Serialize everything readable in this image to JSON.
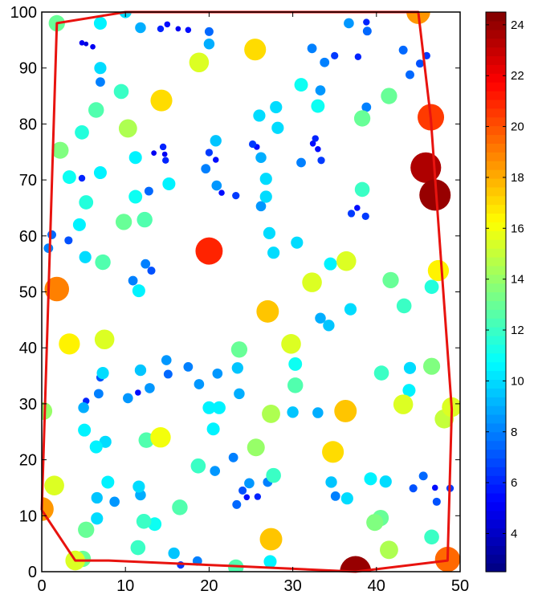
{
  "chart_data": {
    "type": "scatter",
    "title": "",
    "xlabel": "",
    "ylabel": "",
    "xlim": [
      0,
      50
    ],
    "ylim": [
      0,
      100
    ],
    "x_ticks": [
      "0",
      "10",
      "20",
      "30",
      "40",
      "50"
    ],
    "y_ticks": [
      "0",
      "10",
      "20",
      "30",
      "40",
      "50",
      "60",
      "70",
      "80",
      "90",
      "100"
    ],
    "grid": false,
    "colorbar": {
      "min": 2.5,
      "max": 24.5,
      "ticks": [
        "4",
        "6",
        "8",
        "10",
        "12",
        "14",
        "16",
        "18",
        "20",
        "22",
        "24"
      ],
      "colormap": "jet"
    },
    "boundary_color": "#e8130f",
    "boundary": [
      [
        0,
        11
      ],
      [
        1.8,
        98
      ],
      [
        10,
        100
      ],
      [
        45,
        100
      ],
      [
        46.5,
        81
      ],
      [
        49,
        29
      ],
      [
        48.5,
        2
      ],
      [
        37.5,
        0
      ],
      [
        23,
        1
      ],
      [
        8,
        2
      ],
      [
        4,
        2
      ],
      [
        0,
        11
      ]
    ],
    "points": [
      {
        "x": 1.8,
        "y": 98,
        "value": 13
      },
      {
        "x": 7,
        "y": 98,
        "value": 10.5
      },
      {
        "x": 10,
        "y": 100,
        "value": 10
      },
      {
        "x": 45,
        "y": 100,
        "value": 18.5
      },
      {
        "x": 11.8,
        "y": 97.2,
        "value": 9
      },
      {
        "x": 14.2,
        "y": 97,
        "value": 6
      },
      {
        "x": 15,
        "y": 97.8,
        "value": 5.5
      },
      {
        "x": 16.3,
        "y": 97,
        "value": 5
      },
      {
        "x": 17.5,
        "y": 96.8,
        "value": 5.5
      },
      {
        "x": 20,
        "y": 96.5,
        "value": 7.5
      },
      {
        "x": 36.7,
        "y": 98,
        "value": 8.5
      },
      {
        "x": 38.8,
        "y": 98.2,
        "value": 6
      },
      {
        "x": 38.9,
        "y": 96.6,
        "value": 7.5
      },
      {
        "x": 4.8,
        "y": 94.5,
        "value": 5
      },
      {
        "x": 5.3,
        "y": 94.3,
        "value": 4.5
      },
      {
        "x": 6.1,
        "y": 93.8,
        "value": 5
      },
      {
        "x": 20,
        "y": 94.3,
        "value": 9
      },
      {
        "x": 25.5,
        "y": 93.3,
        "value": 17
      },
      {
        "x": 32.3,
        "y": 93.5,
        "value": 8
      },
      {
        "x": 33.8,
        "y": 91,
        "value": 8
      },
      {
        "x": 35,
        "y": 92.2,
        "value": 6.5
      },
      {
        "x": 37.8,
        "y": 92,
        "value": 6
      },
      {
        "x": 46,
        "y": 92.2,
        "value": 6.5
      },
      {
        "x": 43.2,
        "y": 93.2,
        "value": 7.5
      },
      {
        "x": 44,
        "y": 88.8,
        "value": 7.5
      },
      {
        "x": 45.2,
        "y": 90.8,
        "value": 7
      },
      {
        "x": 18.8,
        "y": 91,
        "value": 15.5
      },
      {
        "x": 7,
        "y": 90,
        "value": 10
      },
      {
        "x": 7,
        "y": 87.5,
        "value": 8
      },
      {
        "x": 9.5,
        "y": 85.8,
        "value": 12
      },
      {
        "x": 14.3,
        "y": 84.2,
        "value": 17
      },
      {
        "x": 31,
        "y": 87,
        "value": 11
      },
      {
        "x": 33.3,
        "y": 86,
        "value": 8.5
      },
      {
        "x": 33,
        "y": 83.2,
        "value": 11
      },
      {
        "x": 26,
        "y": 81.5,
        "value": 10
      },
      {
        "x": 28,
        "y": 83,
        "value": 10
      },
      {
        "x": 38.8,
        "y": 83,
        "value": 8
      },
      {
        "x": 41.5,
        "y": 85,
        "value": 13
      },
      {
        "x": 6.5,
        "y": 82.5,
        "value": 12.5
      },
      {
        "x": 4.8,
        "y": 78.5,
        "value": 11.5
      },
      {
        "x": 10.3,
        "y": 79.2,
        "value": 14.5
      },
      {
        "x": 28.2,
        "y": 79.3,
        "value": 10
      },
      {
        "x": 38.3,
        "y": 81,
        "value": 13
      },
      {
        "x": 46.5,
        "y": 81.2,
        "value": 20.5
      },
      {
        "x": 2.2,
        "y": 75.3,
        "value": 13.5
      },
      {
        "x": 11.2,
        "y": 74,
        "value": 10.5
      },
      {
        "x": 13.4,
        "y": 74.8,
        "value": 5
      },
      {
        "x": 14.5,
        "y": 75.9,
        "value": 6
      },
      {
        "x": 14.7,
        "y": 74.6,
        "value": 5
      },
      {
        "x": 14.8,
        "y": 73.5,
        "value": 6
      },
      {
        "x": 20,
        "y": 74.9,
        "value": 6.5
      },
      {
        "x": 20.8,
        "y": 77,
        "value": 9.5
      },
      {
        "x": 20.8,
        "y": 73.6,
        "value": 5.5
      },
      {
        "x": 19.6,
        "y": 72,
        "value": 8
      },
      {
        "x": 25.2,
        "y": 76.4,
        "value": 6.5
      },
      {
        "x": 25.7,
        "y": 75.9,
        "value": 5.5
      },
      {
        "x": 26.2,
        "y": 74,
        "value": 9
      },
      {
        "x": 26.8,
        "y": 70.2,
        "value": 10
      },
      {
        "x": 32.7,
        "y": 77.4,
        "value": 6
      },
      {
        "x": 32.4,
        "y": 76.5,
        "value": 5.5
      },
      {
        "x": 33,
        "y": 75.5,
        "value": 5.5
      },
      {
        "x": 33.4,
        "y": 73.5,
        "value": 6.5
      },
      {
        "x": 31,
        "y": 73.1,
        "value": 8
      },
      {
        "x": 45.9,
        "y": 72.2,
        "value": 23.5
      },
      {
        "x": 3.3,
        "y": 70.5,
        "value": 11
      },
      {
        "x": 4.8,
        "y": 70.3,
        "value": 6
      },
      {
        "x": 7,
        "y": 71.3,
        "value": 10.5
      },
      {
        "x": 12.8,
        "y": 68,
        "value": 7.5
      },
      {
        "x": 15.2,
        "y": 69.3,
        "value": 10.5
      },
      {
        "x": 11.2,
        "y": 67,
        "value": 11
      },
      {
        "x": 20.9,
        "y": 69,
        "value": 8.5
      },
      {
        "x": 21.5,
        "y": 67.7,
        "value": 5.5
      },
      {
        "x": 23.2,
        "y": 67.2,
        "value": 6.5
      },
      {
        "x": 26.8,
        "y": 67,
        "value": 10
      },
      {
        "x": 26.2,
        "y": 65.3,
        "value": 8.5
      },
      {
        "x": 38.3,
        "y": 68.3,
        "value": 12
      },
      {
        "x": 47,
        "y": 67.3,
        "value": 24
      },
      {
        "x": 5.3,
        "y": 66,
        "value": 11.5
      },
      {
        "x": 12.3,
        "y": 62.9,
        "value": 12.5
      },
      {
        "x": 9.8,
        "y": 62.5,
        "value": 13
      },
      {
        "x": 37,
        "y": 64,
        "value": 6.5
      },
      {
        "x": 37.7,
        "y": 65,
        "value": 5.5
      },
      {
        "x": 38.7,
        "y": 63.5,
        "value": 6.5
      },
      {
        "x": 4.5,
        "y": 62,
        "value": 10.5
      },
      {
        "x": 1.2,
        "y": 60.2,
        "value": 7.5
      },
      {
        "x": 3.2,
        "y": 59.2,
        "value": 7
      },
      {
        "x": 0.8,
        "y": 57.8,
        "value": 8
      },
      {
        "x": 5.2,
        "y": 56.2,
        "value": 10
      },
      {
        "x": 7.3,
        "y": 55.3,
        "value": 12.5
      },
      {
        "x": 20,
        "y": 57.3,
        "value": 21
      },
      {
        "x": 27.2,
        "y": 60.5,
        "value": 10
      },
      {
        "x": 30.5,
        "y": 58.8,
        "value": 10
      },
      {
        "x": 27.7,
        "y": 57,
        "value": 10
      },
      {
        "x": 12.4,
        "y": 55,
        "value": 8
      },
      {
        "x": 13.1,
        "y": 53.8,
        "value": 7
      },
      {
        "x": 10.9,
        "y": 52,
        "value": 8
      },
      {
        "x": 11.6,
        "y": 50.2,
        "value": 10.5
      },
      {
        "x": 34.5,
        "y": 55,
        "value": 10.5
      },
      {
        "x": 36.4,
        "y": 55.5,
        "value": 15.5
      },
      {
        "x": 32.3,
        "y": 51.7,
        "value": 15.5
      },
      {
        "x": 41.7,
        "y": 52.1,
        "value": 13
      },
      {
        "x": 47.4,
        "y": 53.8,
        "value": 16.5
      },
      {
        "x": 1.8,
        "y": 50.5,
        "value": 19
      },
      {
        "x": 46.6,
        "y": 50.9,
        "value": 11.5
      },
      {
        "x": 36.9,
        "y": 46.9,
        "value": 10
      },
      {
        "x": 43.3,
        "y": 47.5,
        "value": 12
      },
      {
        "x": 27,
        "y": 46.5,
        "value": 17.5
      },
      {
        "x": 33.3,
        "y": 45.3,
        "value": 9
      },
      {
        "x": 34.3,
        "y": 44,
        "value": 9.5
      },
      {
        "x": 7.5,
        "y": 41.5,
        "value": 15.5
      },
      {
        "x": 3.3,
        "y": 40.7,
        "value": 16.5
      },
      {
        "x": 23.6,
        "y": 39.7,
        "value": 13
      },
      {
        "x": 29.8,
        "y": 40.7,
        "value": 15.5
      },
      {
        "x": 14.9,
        "y": 37.8,
        "value": 8.5
      },
      {
        "x": 17.5,
        "y": 36.6,
        "value": 8
      },
      {
        "x": 11.8,
        "y": 36,
        "value": 9.5
      },
      {
        "x": 7.3,
        "y": 35.5,
        "value": 10
      },
      {
        "x": 7,
        "y": 34.7,
        "value": 7
      },
      {
        "x": 15.1,
        "y": 35.3,
        "value": 7.5
      },
      {
        "x": 21,
        "y": 35.4,
        "value": 8.5
      },
      {
        "x": 23.4,
        "y": 36.4,
        "value": 9.5
      },
      {
        "x": 30.3,
        "y": 37.1,
        "value": 11
      },
      {
        "x": 44,
        "y": 36.4,
        "value": 10
      },
      {
        "x": 40.6,
        "y": 35.5,
        "value": 12
      },
      {
        "x": 46.6,
        "y": 36.7,
        "value": 13.5
      },
      {
        "x": 30.3,
        "y": 33.3,
        "value": 12.5
      },
      {
        "x": 12.9,
        "y": 32.8,
        "value": 8.5
      },
      {
        "x": 11.5,
        "y": 32,
        "value": 5.5
      },
      {
        "x": 6.8,
        "y": 31.8,
        "value": 8
      },
      {
        "x": 10.3,
        "y": 31,
        "value": 8.5
      },
      {
        "x": 5.3,
        "y": 30.5,
        "value": 6
      },
      {
        "x": 5,
        "y": 29.3,
        "value": 9
      },
      {
        "x": 18.8,
        "y": 33.5,
        "value": 8.5
      },
      {
        "x": 23.6,
        "y": 31.8,
        "value": 9
      },
      {
        "x": 43.9,
        "y": 32.4,
        "value": 10.5
      },
      {
        "x": 43.2,
        "y": 29.9,
        "value": 15.5
      },
      {
        "x": 49,
        "y": 29.4,
        "value": 15.5
      },
      {
        "x": 48.1,
        "y": 27.3,
        "value": 15
      },
      {
        "x": 36.3,
        "y": 28.7,
        "value": 17.5
      },
      {
        "x": 33,
        "y": 28.4,
        "value": 9
      },
      {
        "x": 30,
        "y": 28.5,
        "value": 9.5
      },
      {
        "x": 27.4,
        "y": 28.2,
        "value": 14.5
      },
      {
        "x": 20,
        "y": 29.3,
        "value": 10.5
      },
      {
        "x": 21.2,
        "y": 29.3,
        "value": 10.5
      },
      {
        "x": 0.2,
        "y": 28.7,
        "value": 14
      },
      {
        "x": 5.1,
        "y": 25.3,
        "value": 10.5
      },
      {
        "x": 20.5,
        "y": 25.5,
        "value": 10.5
      },
      {
        "x": 12.5,
        "y": 23.5,
        "value": 12.5
      },
      {
        "x": 14.2,
        "y": 24,
        "value": 16
      },
      {
        "x": 7.6,
        "y": 23.2,
        "value": 10
      },
      {
        "x": 6.5,
        "y": 22.3,
        "value": 10.5
      },
      {
        "x": 25.6,
        "y": 22.2,
        "value": 14
      },
      {
        "x": 34.8,
        "y": 21.4,
        "value": 17
      },
      {
        "x": 22.9,
        "y": 20.4,
        "value": 8
      },
      {
        "x": 18.7,
        "y": 18.9,
        "value": 12
      },
      {
        "x": 20.7,
        "y": 18,
        "value": 8.5
      },
      {
        "x": 1.5,
        "y": 15.4,
        "value": 15.5
      },
      {
        "x": 7.9,
        "y": 16,
        "value": 10.5
      },
      {
        "x": 11.6,
        "y": 15.2,
        "value": 10
      },
      {
        "x": 24.8,
        "y": 15.8,
        "value": 8.5
      },
      {
        "x": 27.7,
        "y": 17.2,
        "value": 12
      },
      {
        "x": 27,
        "y": 16,
        "value": 8
      },
      {
        "x": 34.6,
        "y": 16,
        "value": 9.5
      },
      {
        "x": 39.3,
        "y": 16.6,
        "value": 10.5
      },
      {
        "x": 41.1,
        "y": 16.1,
        "value": 10
      },
      {
        "x": 45.6,
        "y": 17.1,
        "value": 7.5
      },
      {
        "x": 44.4,
        "y": 14.9,
        "value": 7
      },
      {
        "x": 47,
        "y": 15,
        "value": 5.5
      },
      {
        "x": 48.8,
        "y": 14.9,
        "value": 6.5
      },
      {
        "x": 24,
        "y": 14.5,
        "value": 7
      },
      {
        "x": 24.5,
        "y": 13.3,
        "value": 5.5
      },
      {
        "x": 25.8,
        "y": 13.4,
        "value": 6
      },
      {
        "x": 23.3,
        "y": 12,
        "value": 7.5
      },
      {
        "x": 35.1,
        "y": 13.5,
        "value": 8
      },
      {
        "x": 36.5,
        "y": 13.1,
        "value": 10
      },
      {
        "x": 8.7,
        "y": 12.5,
        "value": 8.5
      },
      {
        "x": 6.6,
        "y": 13.2,
        "value": 9.5
      },
      {
        "x": 11.8,
        "y": 13.7,
        "value": 9
      },
      {
        "x": 47.2,
        "y": 12.5,
        "value": 7
      },
      {
        "x": 0,
        "y": 11.2,
        "value": 18.5
      },
      {
        "x": 16.5,
        "y": 11.5,
        "value": 12.5
      },
      {
        "x": 12.2,
        "y": 9,
        "value": 12
      },
      {
        "x": 6.6,
        "y": 9.5,
        "value": 10
      },
      {
        "x": 13.5,
        "y": 8.5,
        "value": 11
      },
      {
        "x": 40.5,
        "y": 9.6,
        "value": 13
      },
      {
        "x": 39.8,
        "y": 8.8,
        "value": 13.5
      },
      {
        "x": 5.3,
        "y": 7.5,
        "value": 13
      },
      {
        "x": 27.4,
        "y": 5.8,
        "value": 17.5
      },
      {
        "x": 41.5,
        "y": 3.9,
        "value": 14.5
      },
      {
        "x": 46.6,
        "y": 6.2,
        "value": 12
      },
      {
        "x": 11.5,
        "y": 4.3,
        "value": 12
      },
      {
        "x": 15.8,
        "y": 3.3,
        "value": 9.5
      },
      {
        "x": 4,
        "y": 2,
        "value": 15.5
      },
      {
        "x": 4.9,
        "y": 2.3,
        "value": 13
      },
      {
        "x": 16.6,
        "y": 1.2,
        "value": 6.5
      },
      {
        "x": 18.6,
        "y": 1.9,
        "value": 8
      },
      {
        "x": 23.2,
        "y": 0.8,
        "value": 12.5
      },
      {
        "x": 27.3,
        "y": 1.8,
        "value": 10.5
      },
      {
        "x": 48.5,
        "y": 2.2,
        "value": 19.5
      },
      {
        "x": 37.5,
        "y": 0,
        "value": 24
      }
    ]
  }
}
